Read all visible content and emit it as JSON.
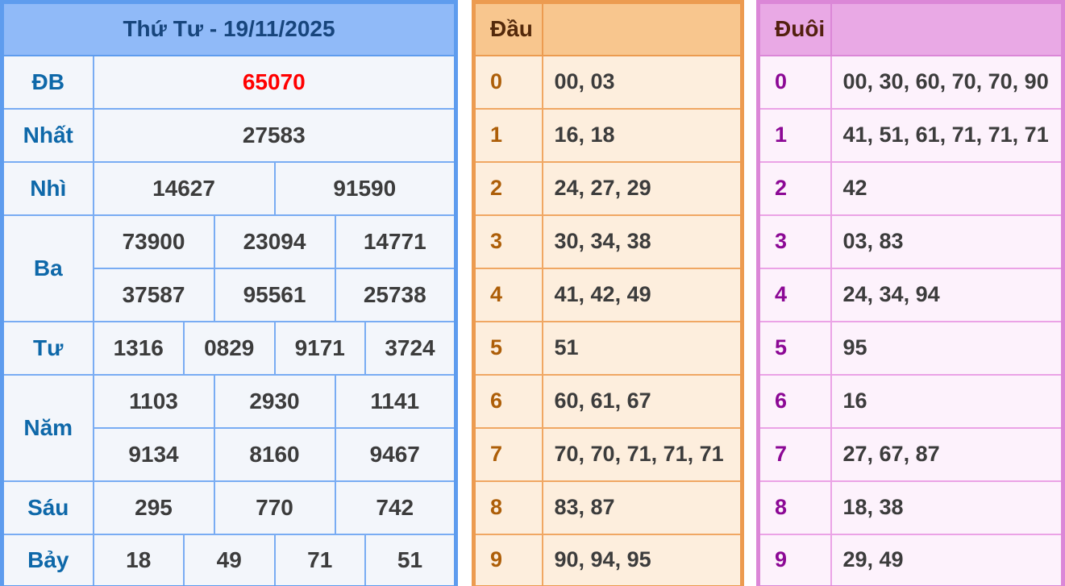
{
  "results": {
    "title": "Thứ Tư - 19/11/2025",
    "rows": [
      {
        "label": "ĐB",
        "values": [
          "65070"
        ]
      },
      {
        "label": "Nhất",
        "values": [
          "27583"
        ]
      },
      {
        "label": "Nhì",
        "values": [
          "14627",
          "91590"
        ]
      },
      {
        "label": "Ba",
        "values": [
          "73900",
          "23094",
          "14771",
          "37587",
          "95561",
          "25738"
        ]
      },
      {
        "label": "Tư",
        "values": [
          "1316",
          "0829",
          "9171",
          "3724"
        ]
      },
      {
        "label": "Năm",
        "values": [
          "1103",
          "2930",
          "1141",
          "9134",
          "8160",
          "9467"
        ]
      },
      {
        "label": "Sáu",
        "values": [
          "295",
          "770",
          "742"
        ]
      },
      {
        "label": "Bảy",
        "values": [
          "18",
          "49",
          "71",
          "51"
        ]
      }
    ]
  },
  "dau": {
    "header": "Đầu",
    "rows": [
      {
        "digit": "0",
        "values": "00, 03"
      },
      {
        "digit": "1",
        "values": "16, 18"
      },
      {
        "digit": "2",
        "values": "24, 27, 29"
      },
      {
        "digit": "3",
        "values": "30, 34, 38"
      },
      {
        "digit": "4",
        "values": "41, 42, 49"
      },
      {
        "digit": "5",
        "values": "51"
      },
      {
        "digit": "6",
        "values": "60, 61, 67"
      },
      {
        "digit": "7",
        "values": "70, 70, 71, 71, 71"
      },
      {
        "digit": "8",
        "values": "83, 87"
      },
      {
        "digit": "9",
        "values": "90, 94, 95"
      }
    ]
  },
  "duoi": {
    "header": "Đuôi",
    "rows": [
      {
        "digit": "0",
        "values": "00, 30, 60, 70, 70, 90"
      },
      {
        "digit": "1",
        "values": "41, 51, 61, 71, 71, 71"
      },
      {
        "digit": "2",
        "values": "42"
      },
      {
        "digit": "3",
        "values": "03, 83"
      },
      {
        "digit": "4",
        "values": "24, 34, 94"
      },
      {
        "digit": "5",
        "values": "95"
      },
      {
        "digit": "6",
        "values": "16"
      },
      {
        "digit": "7",
        "values": "27, 67, 87"
      },
      {
        "digit": "8",
        "values": "18, 38"
      },
      {
        "digit": "9",
        "values": "29, 49"
      }
    ]
  },
  "colors": {
    "blue_border": "#5e9cee",
    "blue_inner_border": "#79acf3",
    "blue_header_bg": "#90baf8",
    "blue_title_text": "#17457c",
    "blue_label_text": "#0e68a9",
    "blue_cell_bg": "#f3f6fb",
    "special_red": "#ff0000",
    "number_text": "#3c3c3c",
    "orange_border": "#ec9b50",
    "orange_inner_border": "#f0a763",
    "orange_header_bg": "#f8c68e",
    "orange_header_text": "#54290b",
    "orange_digit_text": "#ad5e08",
    "orange_cell_bg": "#fdeedd",
    "pink_border": "#db87d7",
    "pink_inner_border": "#eba3e6",
    "pink_header_bg": "#e9a9e5",
    "pink_header_text": "#53200f",
    "pink_digit_text": "#8c0895",
    "pink_cell_bg": "#fdf2fc"
  }
}
